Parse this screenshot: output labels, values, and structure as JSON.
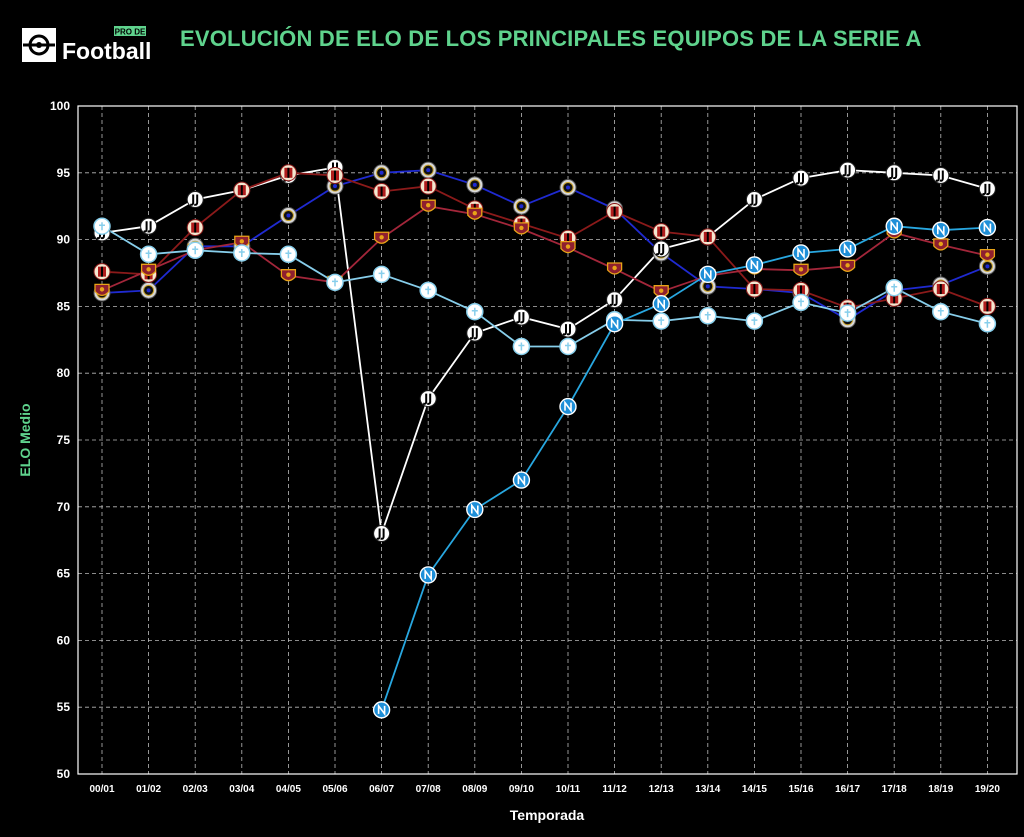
{
  "header": {
    "logo_small": "PRO DE",
    "logo_big": "Football",
    "title": "EVOLUCIÓN DE ELO DE LOS PRINCIPALES EQUIPOS DE LA SERIE A"
  },
  "colors": {
    "title": "#5fd38d",
    "juventus": "#ffffff",
    "inter": "#1f2ad1",
    "milan": "#8b1a1a",
    "roma": "#a3263a",
    "lazio": "#87ceeb",
    "napoli": "#28a7e0"
  },
  "chart_data": {
    "type": "line",
    "title": "EVOLUCIÓN DE ELO DE LOS PRINCIPALES EQUIPOS DE LA SERIE A",
    "xlabel": "Temporada",
    "ylabel": "ELO Medio",
    "ylim": [
      50,
      100
    ],
    "yticks": [
      50,
      55,
      60,
      65,
      70,
      75,
      80,
      85,
      90,
      95,
      100
    ],
    "grid": true,
    "x": [
      "00/01",
      "01/02",
      "02/03",
      "03/04",
      "04/05",
      "05/06",
      "06/07",
      "07/08",
      "08/09",
      "09/10",
      "10/11",
      "11/12",
      "12/13",
      "13/14",
      "14/15",
      "15/16",
      "16/17",
      "17/18",
      "18/19",
      "19/20"
    ],
    "series": [
      {
        "key": "inter",
        "marker": "inter-crest",
        "color": "#1f2ad1",
        "values": [
          86,
          86.2,
          89.5,
          89.5,
          91.8,
          94,
          95,
          95.2,
          94.1,
          92.5,
          93.9,
          92.3,
          89,
          86.5,
          86.3,
          86,
          84,
          86.2,
          86.6,
          88
        ]
      },
      {
        "key": "juventus",
        "marker": "juventus-crest",
        "color": "#ffffff",
        "values": [
          90.5,
          91,
          93,
          93.7,
          94.8,
          95.4,
          68,
          78.1,
          83,
          84.2,
          83.3,
          85.5,
          89.3,
          90.2,
          93,
          94.6,
          95.2,
          95,
          94.8,
          93.8
        ]
      },
      {
        "key": "milan",
        "marker": "milan-crest",
        "color": "#8b1a1a",
        "values": [
          87.6,
          87.4,
          90.9,
          93.7,
          95,
          94.8,
          93.6,
          94,
          92.3,
          91.2,
          90.1,
          92.1,
          90.6,
          90.2,
          86.3,
          86.2,
          84.9,
          85.6,
          86.3,
          85
        ]
      },
      {
        "key": "roma",
        "marker": "roma-crest",
        "color": "#a3263a",
        "values": [
          86.2,
          87.7,
          89.2,
          89.8,
          87.3,
          86.8,
          90.1,
          92.5,
          91.9,
          90.8,
          89.4,
          87.8,
          86.1,
          87.3,
          87.8,
          87.7,
          88,
          90.5,
          89.6,
          88.8
        ]
      },
      {
        "key": "lazio",
        "marker": "lazio-crest",
        "color": "#87ceeb",
        "values": [
          91,
          88.9,
          89.2,
          89,
          88.9,
          86.8,
          87.4,
          86.2,
          84.6,
          82,
          82,
          84,
          83.9,
          84.3,
          83.9,
          85.3,
          84.5,
          86.4,
          84.6,
          83.7
        ]
      },
      {
        "key": "napoli",
        "marker": "napoli-crest",
        "color": "#28a7e0",
        "values": [
          null,
          null,
          null,
          null,
          null,
          null,
          54.8,
          64.9,
          69.8,
          72,
          77.5,
          83.7,
          85.2,
          87.4,
          88.1,
          89,
          89.3,
          91,
          90.7,
          90.9
        ]
      }
    ]
  }
}
